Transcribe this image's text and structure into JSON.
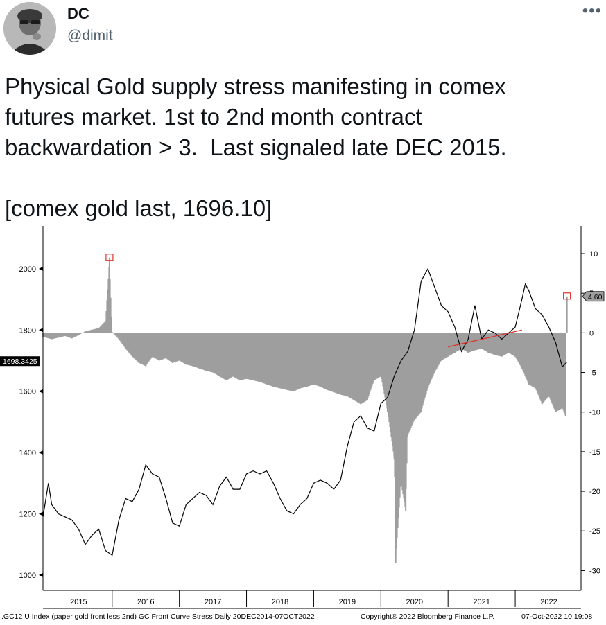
{
  "tweet": {
    "display_name": "DC",
    "handle": "@dimit",
    "more_label": "•••",
    "text_line1": "Physical Gold supply stress manifesting in comex",
    "text_line2": "futures market. 1st to 2nd month contract",
    "text_line3": "backwardation > 3.  Last signaled late DEC 2015.",
    "text_line5": "[comex gold last, 1696.10]"
  },
  "chart_data": {
    "type": "line",
    "x_ticks": [
      "2015",
      "2016",
      "2017",
      "2018",
      "2019",
      "2020",
      "2021",
      "2022"
    ],
    "left_axis": {
      "ticks": [
        1000,
        1200,
        1400,
        1600,
        1800,
        2000
      ],
      "ylim": [
        950,
        2140
      ]
    },
    "right_axis": {
      "ticks": [
        10,
        5,
        0,
        -5,
        -10,
        -15,
        -20,
        -25,
        -30
      ],
      "ylim": [
        -32.5,
        13.5
      ]
    },
    "last_price_tag": "1698.3425",
    "last_stress_tag": "4.60",
    "series": [
      {
        "name": "",
        "axis": "left",
        "style": "line",
        "color": "#000000",
        "x": [
          2014.97,
          2015.05,
          2015.1,
          2015.2,
          2015.3,
          2015.4,
          2015.5,
          2015.6,
          2015.7,
          2015.8,
          2015.9,
          2016.0,
          2016.1,
          2016.2,
          2016.3,
          2016.4,
          2016.5,
          2016.6,
          2016.7,
          2016.8,
          2016.9,
          2017.0,
          2017.1,
          2017.2,
          2017.3,
          2017.4,
          2017.5,
          2017.6,
          2017.7,
          2017.8,
          2017.9,
          2018.0,
          2018.1,
          2018.2,
          2018.3,
          2018.4,
          2018.5,
          2018.6,
          2018.7,
          2018.8,
          2018.9,
          2019.0,
          2019.1,
          2019.2,
          2019.3,
          2019.4,
          2019.5,
          2019.6,
          2019.7,
          2019.8,
          2019.9,
          2020.0,
          2020.1,
          2020.2,
          2020.3,
          2020.4,
          2020.5,
          2020.6,
          2020.7,
          2020.8,
          2020.9,
          2021.0,
          2021.1,
          2021.2,
          2021.3,
          2021.4,
          2021.5,
          2021.6,
          2021.7,
          2021.8,
          2021.9,
          2022.0,
          2022.1,
          2022.15,
          2022.2,
          2022.3,
          2022.4,
          2022.5,
          2022.6,
          2022.7,
          2022.77
        ],
        "y": [
          1190,
          1300,
          1230,
          1200,
          1190,
          1180,
          1150,
          1100,
          1130,
          1150,
          1080,
          1065,
          1180,
          1250,
          1240,
          1280,
          1360,
          1330,
          1320,
          1250,
          1170,
          1160,
          1230,
          1250,
          1270,
          1260,
          1230,
          1290,
          1320,
          1280,
          1280,
          1330,
          1340,
          1330,
          1340,
          1300,
          1250,
          1210,
          1200,
          1230,
          1250,
          1300,
          1310,
          1300,
          1280,
          1310,
          1420,
          1500,
          1520,
          1480,
          1470,
          1560,
          1580,
          1650,
          1700,
          1730,
          1800,
          1960,
          2000,
          1940,
          1880,
          1860,
          1810,
          1730,
          1770,
          1880,
          1770,
          1800,
          1790,
          1770,
          1790,
          1810,
          1900,
          1950,
          1930,
          1870,
          1850,
          1810,
          1760,
          1680,
          1696
        ]
      },
      {
        "name": "",
        "axis": "right",
        "style": "histogram",
        "color": "#9e9e9e",
        "x": [
          2014.97,
          2015.1,
          2015.2,
          2015.3,
          2015.4,
          2015.5,
          2015.6,
          2015.7,
          2015.8,
          2015.9,
          2015.96,
          2016.0,
          2016.1,
          2016.2,
          2016.3,
          2016.4,
          2016.5,
          2016.6,
          2016.7,
          2016.8,
          2016.9,
          2017.0,
          2017.1,
          2017.2,
          2017.3,
          2017.4,
          2017.5,
          2017.6,
          2017.7,
          2017.8,
          2017.9,
          2018.0,
          2018.1,
          2018.2,
          2018.3,
          2018.4,
          2018.5,
          2018.6,
          2018.7,
          2018.8,
          2018.9,
          2019.0,
          2019.1,
          2019.2,
          2019.3,
          2019.4,
          2019.5,
          2019.6,
          2019.7,
          2019.8,
          2019.9,
          2020.0,
          2020.1,
          2020.2,
          2020.22,
          2020.3,
          2020.37,
          2020.4,
          2020.5,
          2020.6,
          2020.7,
          2020.8,
          2020.9,
          2021.0,
          2021.1,
          2021.2,
          2021.3,
          2021.4,
          2021.5,
          2021.6,
          2021.7,
          2021.8,
          2021.9,
          2022.0,
          2022.1,
          2022.2,
          2022.3,
          2022.4,
          2022.5,
          2022.6,
          2022.7,
          2022.75,
          2022.77
        ],
        "y": [
          -0.5,
          -0.8,
          -0.6,
          -0.4,
          -0.7,
          -0.3,
          0.2,
          0.4,
          0.6,
          1.5,
          9.5,
          0.1,
          -0.8,
          -2.0,
          -3.0,
          -3.8,
          -4.2,
          -3.0,
          -3.5,
          -3.2,
          -3.8,
          -3.5,
          -4.0,
          -4.2,
          -4.5,
          -4.8,
          -5.0,
          -5.5,
          -6.0,
          -5.5,
          -6.0,
          -5.8,
          -6.0,
          -6.2,
          -6.5,
          -6.8,
          -7.0,
          -7.2,
          -7.4,
          -7.0,
          -6.8,
          -6.5,
          -6.8,
          -7.2,
          -7.5,
          -7.8,
          -8.0,
          -8.5,
          -9.0,
          -8.5,
          -6.0,
          -5.5,
          -10.0,
          -16.0,
          -29.0,
          -19.0,
          -22.5,
          -13.0,
          -11.0,
          -10.0,
          -7.0,
          -5.0,
          -3.5,
          -3.0,
          -2.5,
          -2.0,
          -2.5,
          -2.2,
          -2.0,
          -2.5,
          -2.8,
          -3.0,
          -2.5,
          -3.0,
          -4.5,
          -6.5,
          -7.0,
          -9.0,
          -8.0,
          -10.0,
          -9.5,
          -10.5,
          4.6
        ]
      },
      {
        "name": "",
        "axis": "left",
        "style": "trendline",
        "color": "#e0302b",
        "x": [
          2021.0,
          2022.1
        ],
        "y": [
          1745,
          1800
        ]
      }
    ],
    "markers": [
      {
        "axis": "right",
        "x": 2015.96,
        "y": 9.5
      },
      {
        "axis": "right",
        "x": 2022.77,
        "y": 4.6
      }
    ]
  },
  "footer": {
    "left": ".GC12 U Index (paper gold front less 2nd) GC Front Curve Stress  Daily 20DEC2014-07OCT2022",
    "middle": "Copyright® 2022 Bloomberg Finance L.P.",
    "right": "07-Oct-2022 10:19:08"
  }
}
